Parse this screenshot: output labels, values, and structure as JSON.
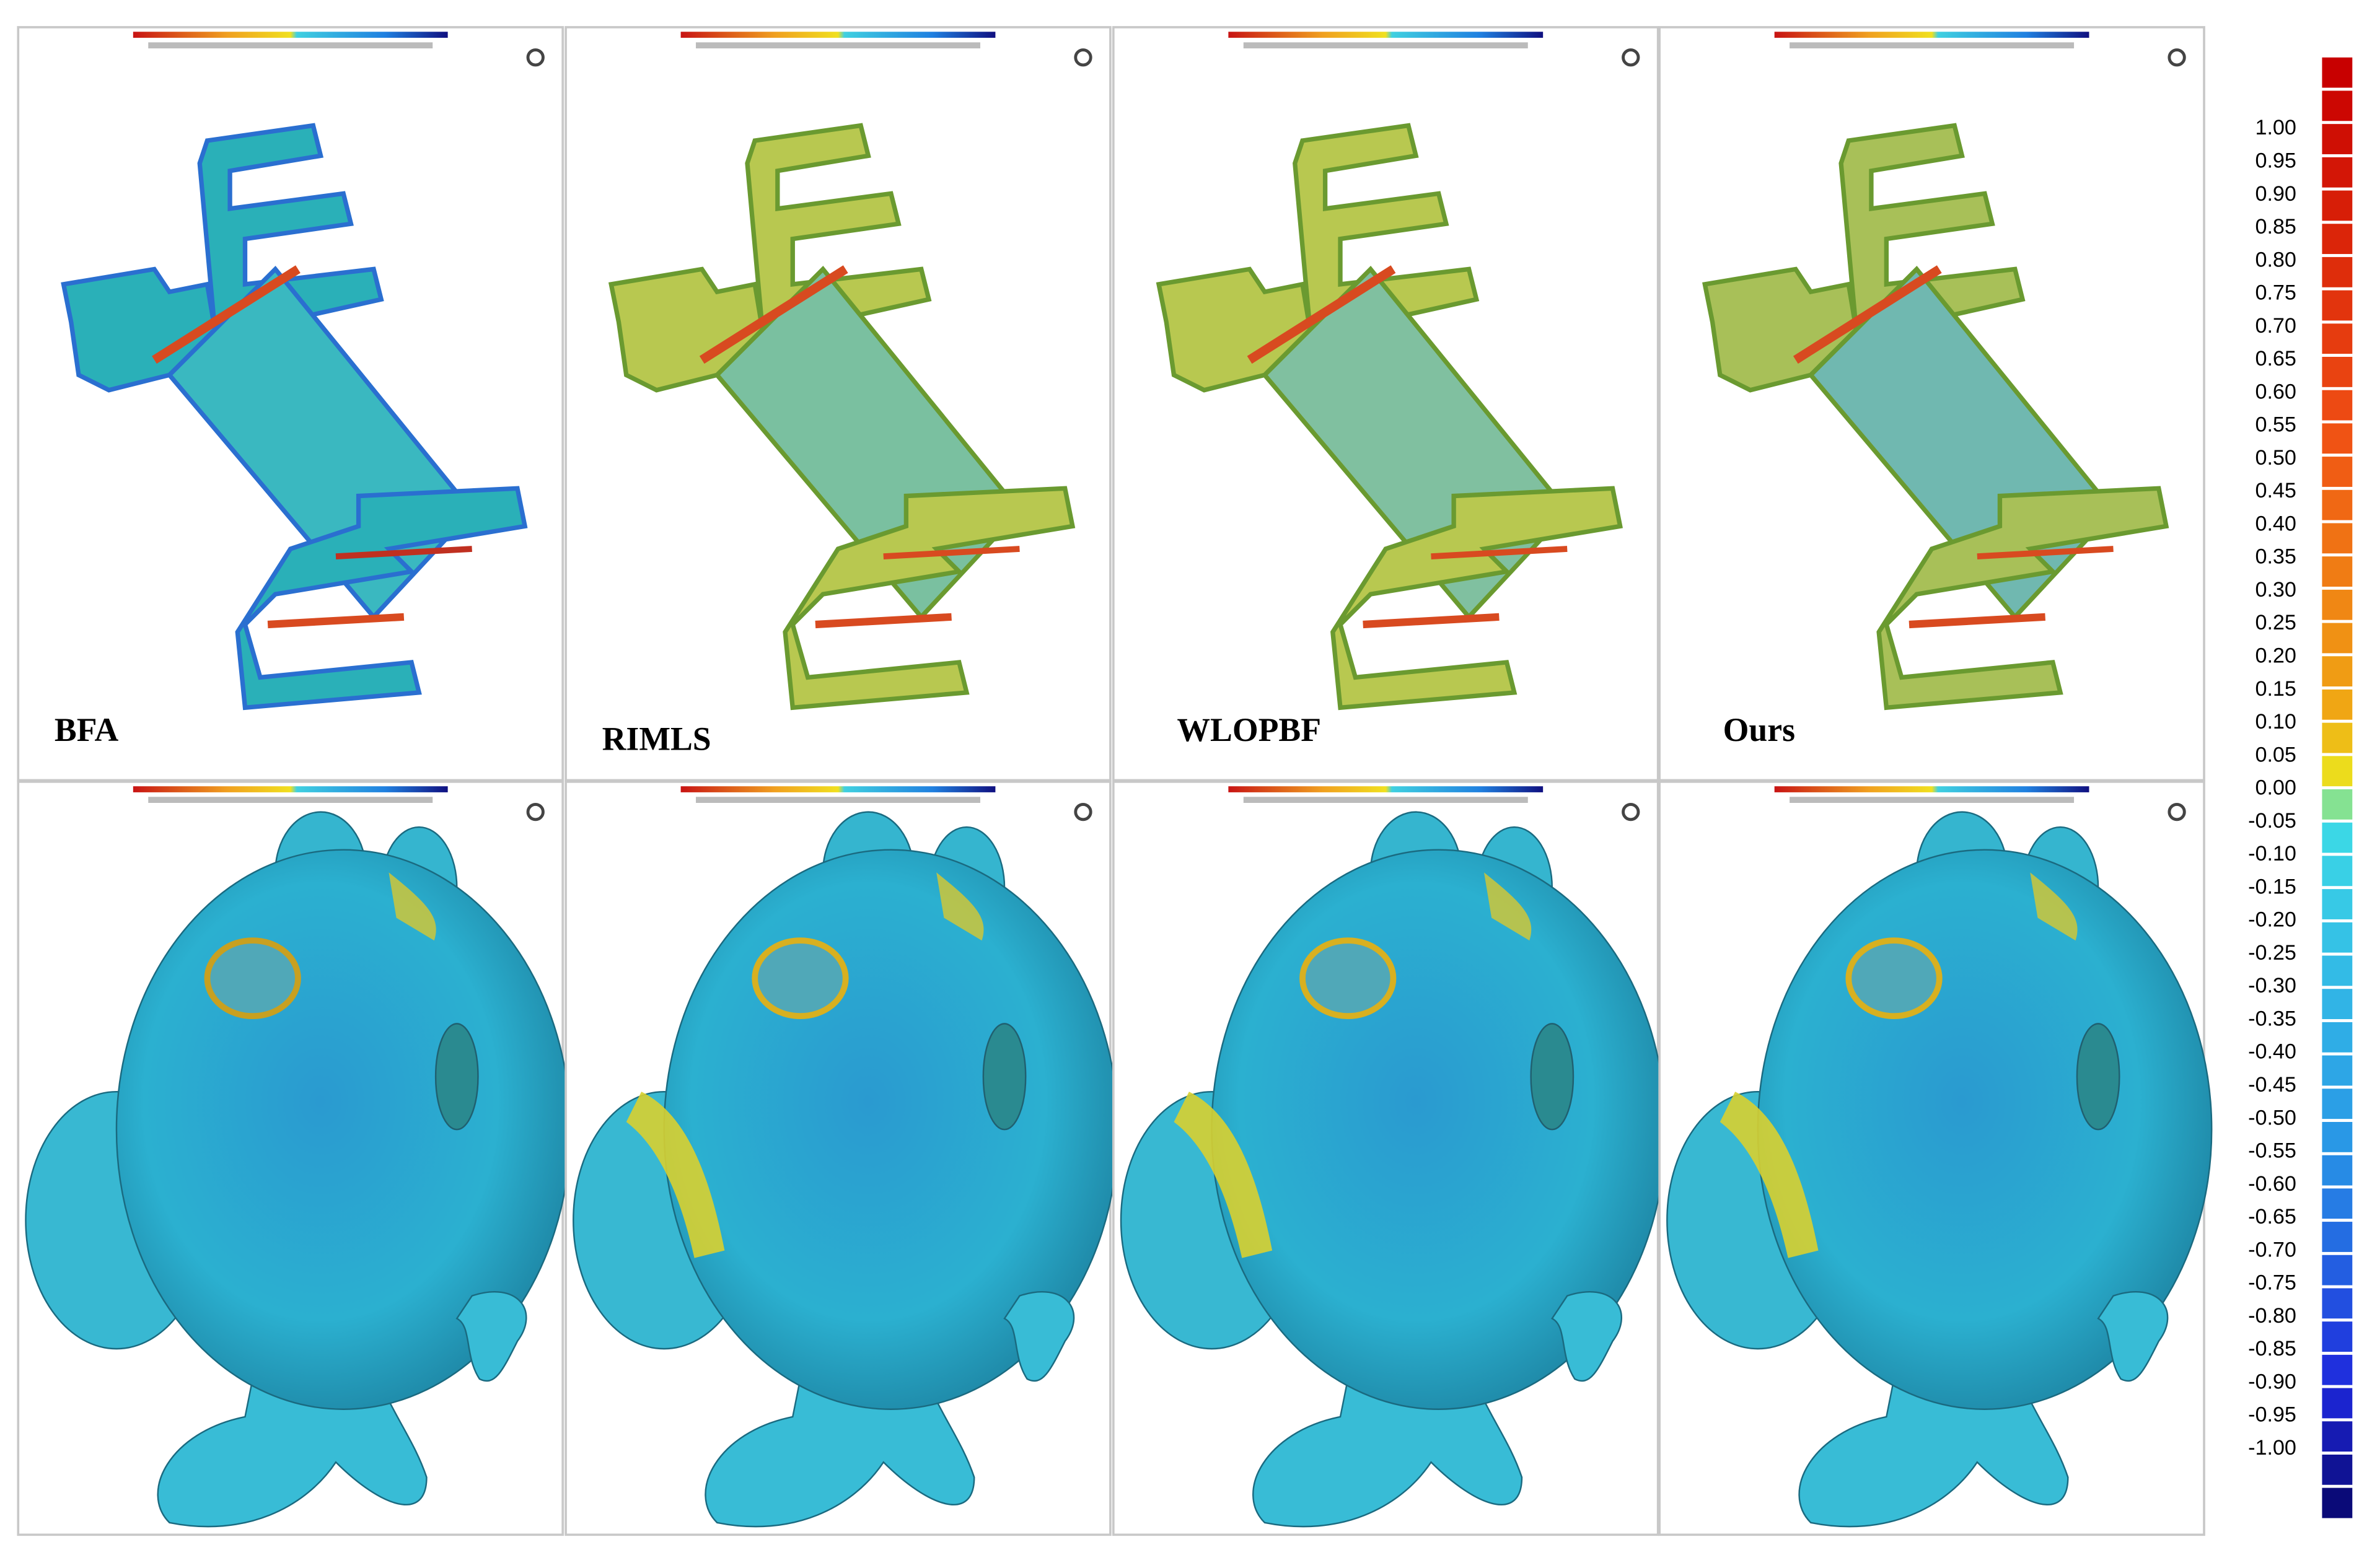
{
  "figure": {
    "methods": [
      "BFA",
      "RIMLS",
      "WLOPBF",
      "Ours"
    ],
    "colorbar": {
      "labels": [
        "1.00",
        "0.95",
        "0.90",
        "0.85",
        "0.80",
        "0.75",
        "0.70",
        "0.65",
        "0.60",
        "0.55",
        "0.50",
        "0.45",
        "0.40",
        "0.35",
        "0.30",
        "0.25",
        "0.20",
        "0.15",
        "0.10",
        "0.05",
        "0.00",
        "-0.05",
        "-0.10",
        "-0.15",
        "-0.20",
        "-0.25",
        "-0.30",
        "-0.35",
        "-0.40",
        "-0.45",
        "-0.50",
        "-0.55",
        "-0.60",
        "-0.65",
        "-0.70",
        "-0.75",
        "-0.80",
        "-0.85",
        "-0.90",
        "-0.95",
        "-1.00"
      ]
    }
  }
}
